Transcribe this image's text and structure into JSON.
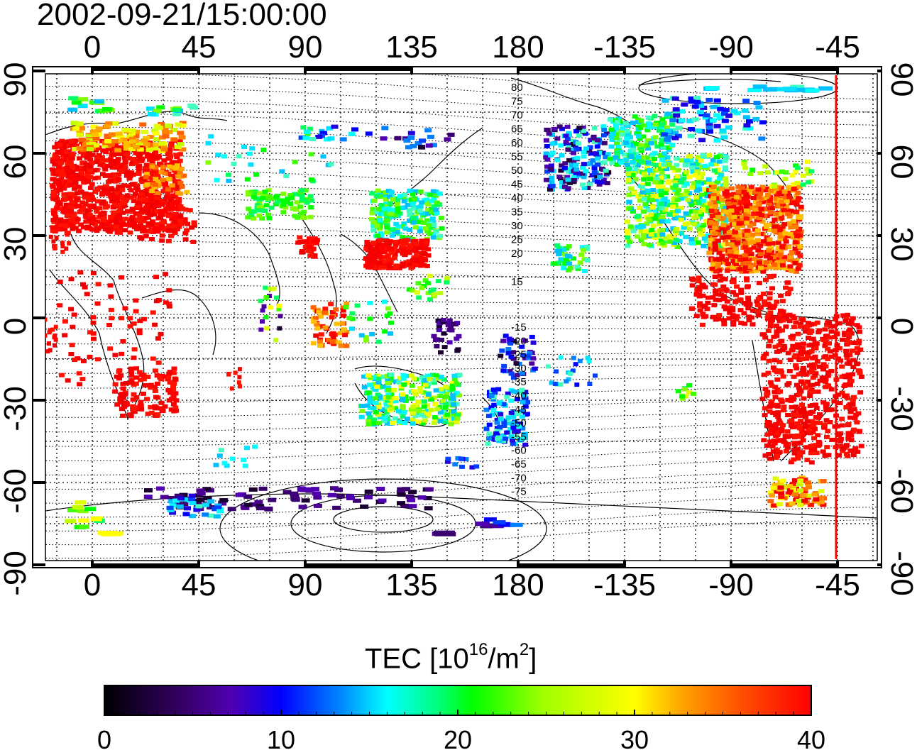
{
  "title": "2002-09-21/15:00:00",
  "map": {
    "top_ticks": [
      "0",
      "45",
      "90",
      "135",
      "180",
      "-135",
      "-90",
      "-45"
    ],
    "bottom_ticks": [
      "0",
      "45",
      "90",
      "135",
      "180",
      "-135",
      "-90",
      "-45"
    ],
    "left_ticks": [
      "90",
      "60",
      "30",
      "0",
      "-30",
      "-60",
      "-90"
    ],
    "right_ticks": [
      "90",
      "60",
      "30",
      "0",
      "-30",
      "-60",
      "-90"
    ],
    "contour_labels_north": [
      "80",
      "75",
      "70",
      "65",
      "60",
      "55",
      "50",
      "45",
      "40",
      "35",
      "30",
      "25",
      "20",
      "15"
    ],
    "contour_labels_south": [
      "-15",
      "-20",
      "-25",
      "-30",
      "-35",
      "-40",
      "-45",
      "-50",
      "-55",
      "-60",
      "-65",
      "-70",
      "-75"
    ],
    "marker_line_color": "#ff0000",
    "terminator_longitude": -45
  },
  "colorbar": {
    "title_main": "TEC  [10",
    "title_exp": "16",
    "title_mid": "/m",
    "title_exp2": "2",
    "title_end": "]",
    "ticks": [
      "0",
      "10",
      "20",
      "30",
      "40"
    ],
    "range": [
      0,
      40
    ],
    "colors": [
      "#000000",
      "#3a0070",
      "#5000b0",
      "#0000ff",
      "#0080ff",
      "#00ffff",
      "#00ff80",
      "#00ff00",
      "#a0ff00",
      "#ffff00",
      "#ffa000",
      "#ff5000",
      "#ff0000"
    ]
  }
}
